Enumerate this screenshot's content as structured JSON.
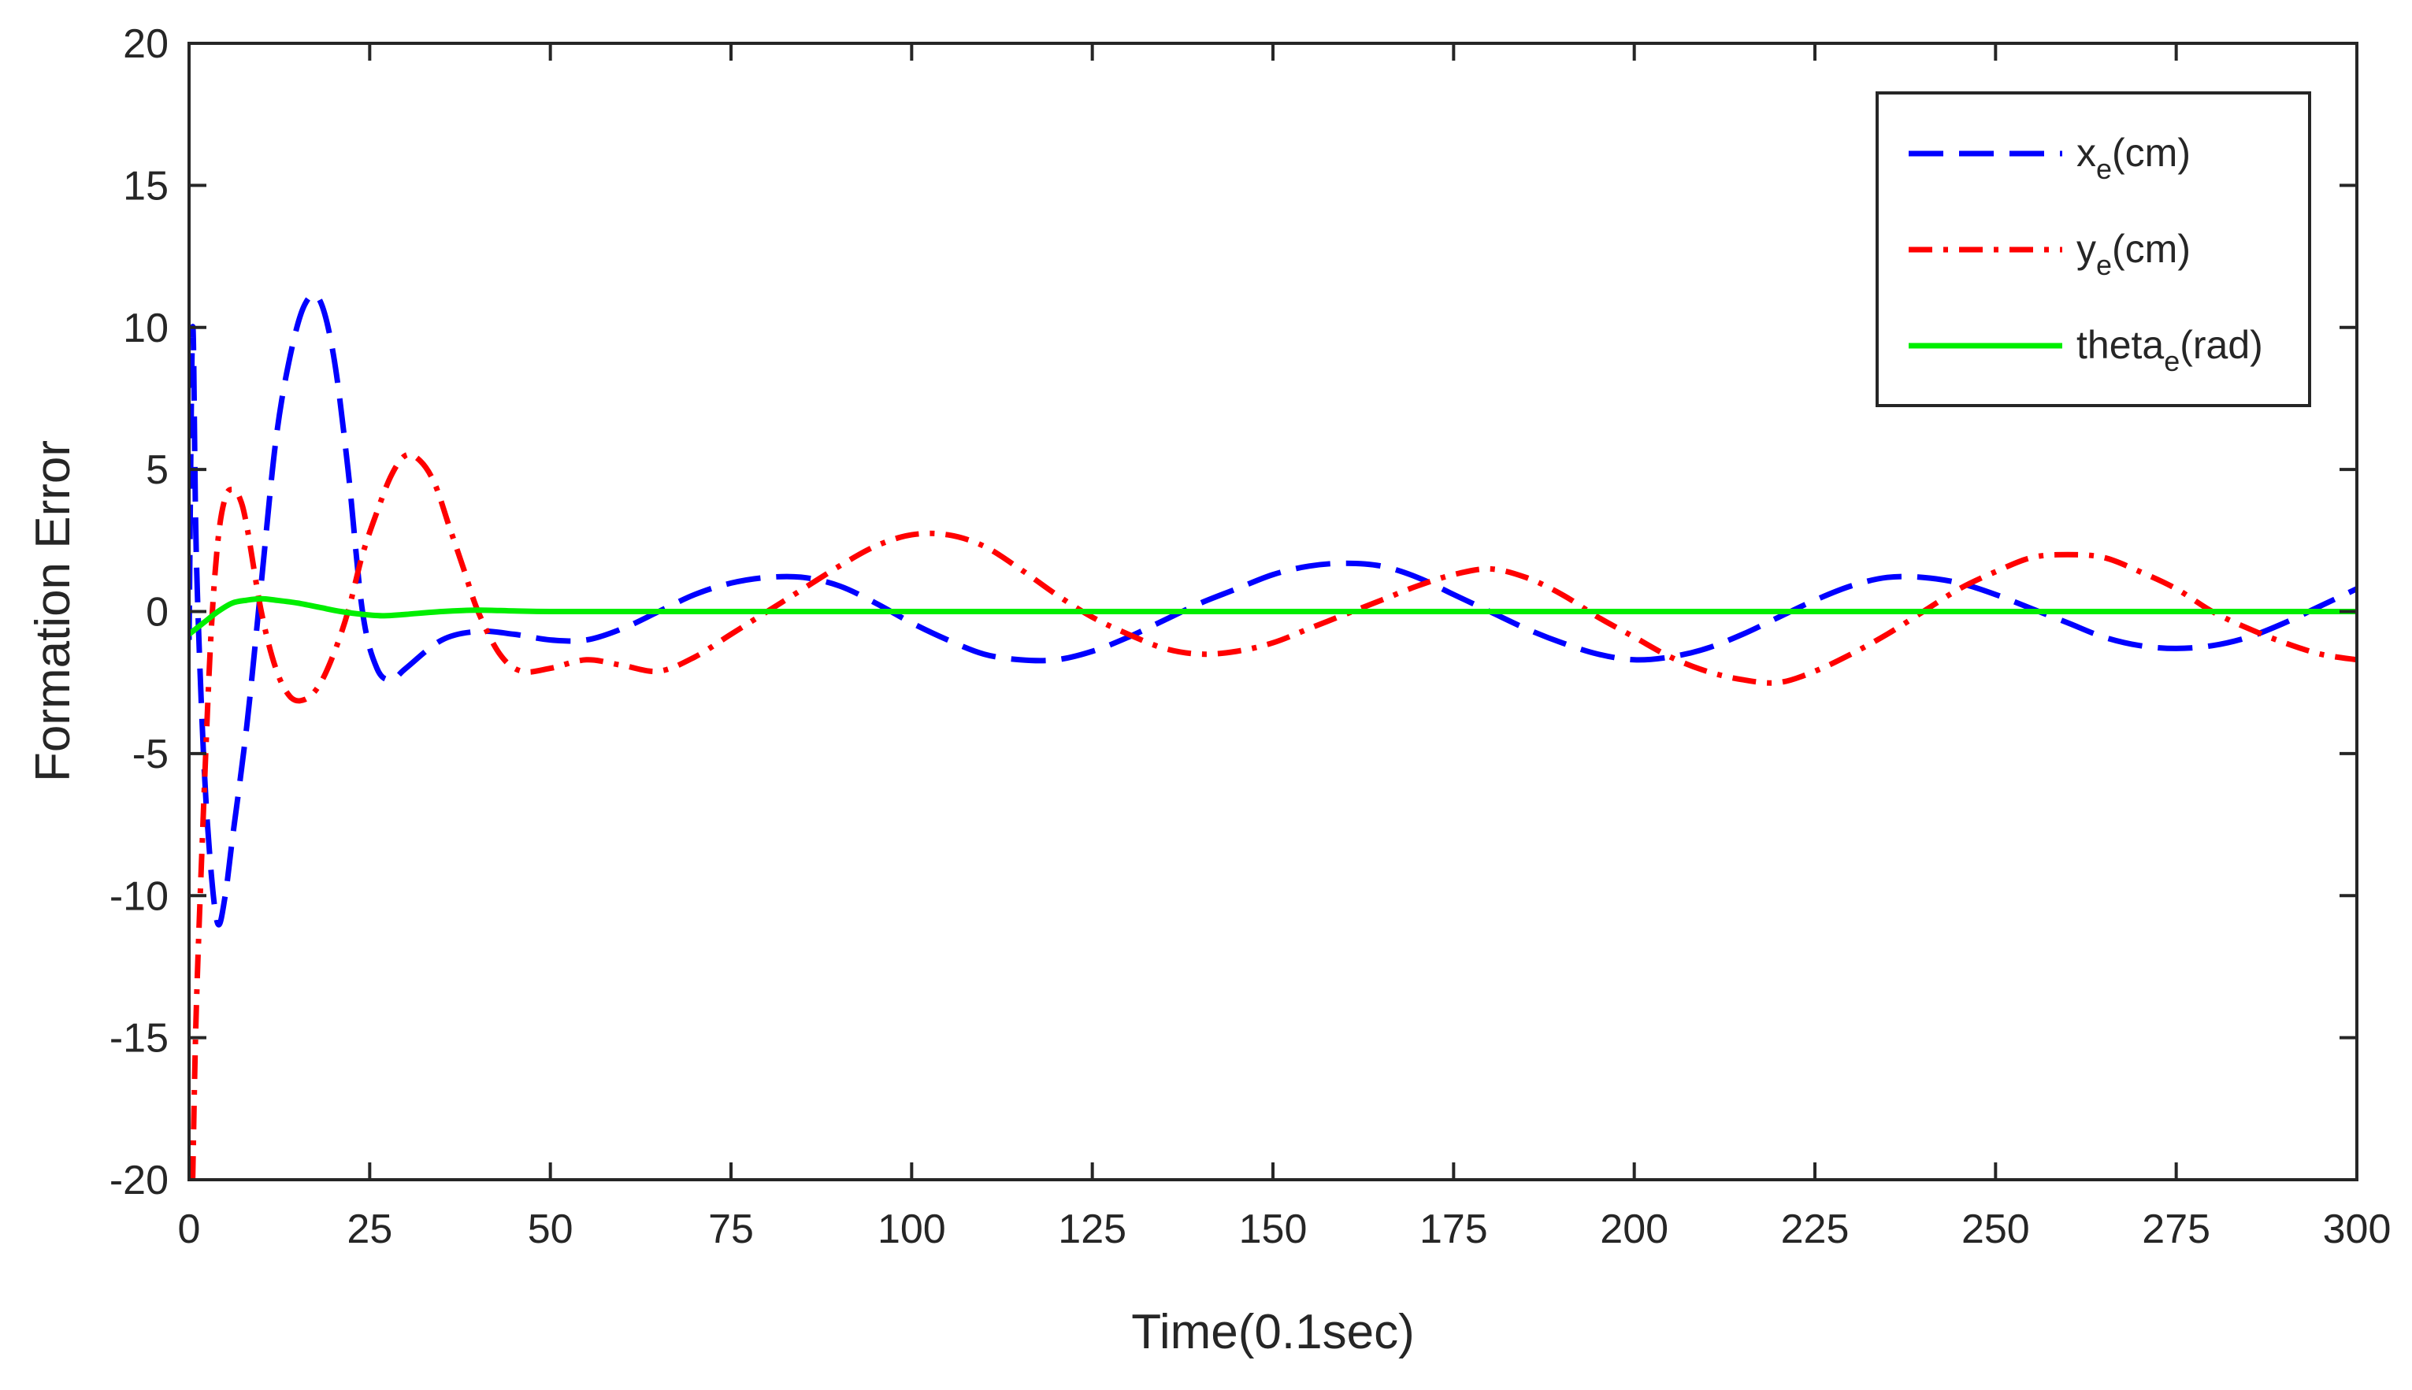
{
  "chart_data": {
    "type": "line",
    "title": "",
    "xlabel": "Time(0.1sec)",
    "ylabel": "Formation Error",
    "xlim": [
      0,
      300
    ],
    "ylim": [
      -20,
      20
    ],
    "xticks": [
      0,
      25,
      50,
      75,
      100,
      125,
      150,
      175,
      200,
      225,
      250,
      275,
      300
    ],
    "yticks": [
      20,
      15,
      10,
      5,
      0,
      -5,
      -10,
      -15,
      -20
    ],
    "grid": false,
    "legend_position": "top-right",
    "series": [
      {
        "name": "x_e(cm)",
        "legend_main": "x",
        "legend_sub": "e",
        "legend_tail": "(cm)",
        "color": "#0000ff",
        "style": "dashed",
        "points": [
          [
            0,
            -1
          ],
          [
            0.5,
            10
          ],
          [
            1,
            2
          ],
          [
            2,
            -5
          ],
          [
            3,
            -9
          ],
          [
            4,
            -11
          ],
          [
            5,
            -10
          ],
          [
            6,
            -8
          ],
          [
            8,
            -4
          ],
          [
            10,
            1
          ],
          [
            12,
            6
          ],
          [
            14,
            9
          ],
          [
            16,
            10.8
          ],
          [
            18,
            11
          ],
          [
            20,
            9
          ],
          [
            22,
            5
          ],
          [
            24,
            0
          ],
          [
            26,
            -2
          ],
          [
            28,
            -2.4
          ],
          [
            30,
            -2
          ],
          [
            35,
            -1
          ],
          [
            40,
            -0.7
          ],
          [
            45,
            -0.8
          ],
          [
            50,
            -1
          ],
          [
            55,
            -1
          ],
          [
            60,
            -0.6
          ],
          [
            65,
            0
          ],
          [
            70,
            0.6
          ],
          [
            75,
            1
          ],
          [
            80,
            1.2
          ],
          [
            85,
            1.2
          ],
          [
            90,
            0.9
          ],
          [
            95,
            0.3
          ],
          [
            100,
            -0.4
          ],
          [
            105,
            -1
          ],
          [
            110,
            -1.5
          ],
          [
            115,
            -1.7
          ],
          [
            120,
            -1.7
          ],
          [
            125,
            -1.4
          ],
          [
            130,
            -0.9
          ],
          [
            135,
            -0.3
          ],
          [
            140,
            0.3
          ],
          [
            145,
            0.8
          ],
          [
            150,
            1.3
          ],
          [
            155,
            1.6
          ],
          [
            160,
            1.7
          ],
          [
            165,
            1.6
          ],
          [
            170,
            1.2
          ],
          [
            175,
            0.6
          ],
          [
            180,
            0
          ],
          [
            185,
            -0.6
          ],
          [
            190,
            -1.1
          ],
          [
            195,
            -1.5
          ],
          [
            200,
            -1.7
          ],
          [
            205,
            -1.6
          ],
          [
            210,
            -1.3
          ],
          [
            215,
            -0.8
          ],
          [
            220,
            -0.2
          ],
          [
            225,
            0.4
          ],
          [
            230,
            0.9
          ],
          [
            235,
            1.2
          ],
          [
            240,
            1.2
          ],
          [
            245,
            1
          ],
          [
            250,
            0.6
          ],
          [
            255,
            0.1
          ],
          [
            260,
            -0.4
          ],
          [
            265,
            -0.9
          ],
          [
            270,
            -1.2
          ],
          [
            275,
            -1.3
          ],
          [
            280,
            -1.2
          ],
          [
            285,
            -0.9
          ],
          [
            290,
            -0.4
          ],
          [
            295,
            0.2
          ],
          [
            300,
            0.8
          ]
        ]
      },
      {
        "name": "y_e(cm)",
        "legend_main": "y",
        "legend_sub": "e",
        "legend_tail": "(cm)",
        "color": "#ff0000",
        "style": "dashdot",
        "points": [
          [
            0.5,
            -20
          ],
          [
            1,
            -14
          ],
          [
            2,
            -7
          ],
          [
            3,
            -1
          ],
          [
            4,
            2.5
          ],
          [
            5,
            4
          ],
          [
            6,
            4.3
          ],
          [
            7,
            4
          ],
          [
            8,
            3
          ],
          [
            10,
            0
          ],
          [
            12,
            -2
          ],
          [
            14,
            -3
          ],
          [
            16,
            -3.1
          ],
          [
            18,
            -2.6
          ],
          [
            20,
            -1.5
          ],
          [
            22,
            0
          ],
          [
            24,
            2
          ],
          [
            26,
            3.5
          ],
          [
            28,
            4.8
          ],
          [
            30,
            5.5
          ],
          [
            32,
            5.3
          ],
          [
            34,
            4.5
          ],
          [
            36,
            3
          ],
          [
            38,
            1.5
          ],
          [
            40,
            0
          ],
          [
            43,
            -1.5
          ],
          [
            46,
            -2.1
          ],
          [
            50,
            -2
          ],
          [
            55,
            -1.7
          ],
          [
            60,
            -1.9
          ],
          [
            65,
            -2.1
          ],
          [
            70,
            -1.6
          ],
          [
            75,
            -0.8
          ],
          [
            80,
            0
          ],
          [
            85,
            0.8
          ],
          [
            90,
            1.6
          ],
          [
            95,
            2.3
          ],
          [
            100,
            2.7
          ],
          [
            105,
            2.7
          ],
          [
            110,
            2.3
          ],
          [
            115,
            1.5
          ],
          [
            120,
            0.6
          ],
          [
            125,
            -0.2
          ],
          [
            130,
            -0.8
          ],
          [
            135,
            -1.3
          ],
          [
            140,
            -1.5
          ],
          [
            145,
            -1.4
          ],
          [
            150,
            -1.1
          ],
          [
            155,
            -0.6
          ],
          [
            160,
            -0.1
          ],
          [
            165,
            0.4
          ],
          [
            170,
            0.9
          ],
          [
            175,
            1.3
          ],
          [
            180,
            1.5
          ],
          [
            185,
            1.2
          ],
          [
            190,
            0.6
          ],
          [
            195,
            -0.2
          ],
          [
            200,
            -0.9
          ],
          [
            205,
            -1.6
          ],
          [
            210,
            -2.1
          ],
          [
            215,
            -2.4
          ],
          [
            220,
            -2.5
          ],
          [
            225,
            -2.1
          ],
          [
            230,
            -1.5
          ],
          [
            235,
            -0.8
          ],
          [
            240,
            0
          ],
          [
            245,
            0.8
          ],
          [
            250,
            1.4
          ],
          [
            255,
            1.9
          ],
          [
            260,
            2
          ],
          [
            265,
            1.9
          ],
          [
            270,
            1.4
          ],
          [
            275,
            0.8
          ],
          [
            280,
            0
          ],
          [
            285,
            -0.6
          ],
          [
            290,
            -1.1
          ],
          [
            295,
            -1.5
          ],
          [
            300,
            -1.7
          ]
        ]
      },
      {
        "name": "theta_e(rad)",
        "legend_main": "theta",
        "legend_sub": "e",
        "legend_tail": "(rad)",
        "color": "#00ee00",
        "style": "solid",
        "points": [
          [
            0,
            -0.8
          ],
          [
            2,
            -0.4
          ],
          [
            4,
            0
          ],
          [
            6,
            0.3
          ],
          [
            8,
            0.4
          ],
          [
            10,
            0.45
          ],
          [
            12,
            0.4
          ],
          [
            15,
            0.3
          ],
          [
            18,
            0.15
          ],
          [
            21,
            0
          ],
          [
            24,
            -0.1
          ],
          [
            27,
            -0.15
          ],
          [
            30,
            -0.1
          ],
          [
            35,
            0
          ],
          [
            40,
            0.05
          ],
          [
            45,
            0.02
          ],
          [
            50,
            0
          ],
          [
            60,
            0
          ],
          [
            80,
            0
          ],
          [
            100,
            0
          ],
          [
            150,
            0
          ],
          [
            200,
            0
          ],
          [
            250,
            0
          ],
          [
            300,
            0
          ]
        ]
      }
    ]
  }
}
